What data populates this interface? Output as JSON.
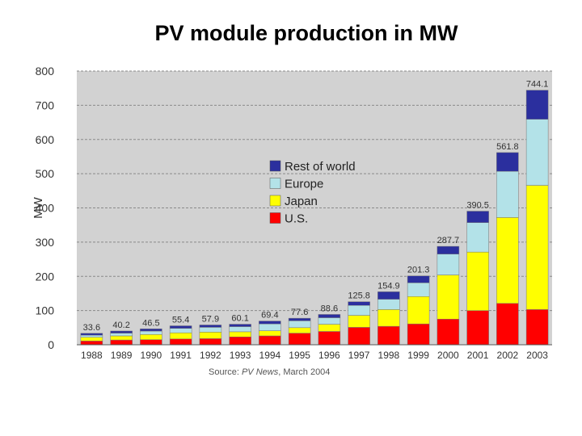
{
  "title": "PV module production in MW",
  "source": {
    "prefix": "Source: ",
    "publication": "PV News",
    "suffix": ", March 2004"
  },
  "chart_data": {
    "type": "bar",
    "stacked": true,
    "title": "PV module production in MW",
    "xlabel": "",
    "ylabel": "MW",
    "ylim": [
      0,
      800
    ],
    "yticks": [
      0,
      100,
      200,
      300,
      400,
      500,
      600,
      700,
      800
    ],
    "grid": true,
    "legend_position": "upper-left-center",
    "categories": [
      "1988",
      "1989",
      "1990",
      "1991",
      "1992",
      "1993",
      "1994",
      "1995",
      "1996",
      "1997",
      "1998",
      "1999",
      "2000",
      "2001",
      "2002",
      "2003"
    ],
    "totals": [
      33.6,
      40.2,
      46.5,
      55.4,
      57.9,
      60.1,
      69.4,
      77.6,
      88.6,
      125.8,
      154.9,
      201.3,
      287.7,
      390.5,
      561.8,
      744.1
    ],
    "total_labels": [
      "33.6",
      "40.2",
      "46.5",
      "55.4",
      "57.9",
      "60.1",
      "69.4",
      "77.6",
      "88.6",
      "125.8",
      "154.9",
      "201.3",
      "287.7",
      "390.5",
      "561.8",
      "744.1"
    ],
    "series": [
      {
        "name": "U.S.",
        "color": "#ff0000",
        "values": [
          11,
          14,
          15,
          17,
          18,
          23,
          26,
          34,
          39,
          51,
          54,
          61,
          75,
          100,
          121,
          103
        ]
      },
      {
        "name": "Japan",
        "color": "#ffff00",
        "values": [
          11,
          12,
          15,
          18,
          19,
          15,
          15,
          16,
          21,
          35,
          49,
          80,
          129,
          171,
          251,
          363
        ]
      },
      {
        "name": "Europe",
        "color": "#b3e2e8",
        "values": [
          6,
          8,
          10,
          13,
          14,
          15,
          20,
          20,
          19,
          29,
          30,
          40,
          61,
          86,
          135,
          193
        ]
      },
      {
        "name": "Rest of world",
        "color": "#2b2f9e",
        "values": [
          5.6,
          6.2,
          6.5,
          7.4,
          6.9,
          7.1,
          8.4,
          7.6,
          9.6,
          10.8,
          21.9,
          20.3,
          22.7,
          33.5,
          54.8,
          85.1
        ]
      }
    ],
    "legend_order": [
      "Rest of world",
      "Europe",
      "Japan",
      "U.S."
    ]
  }
}
